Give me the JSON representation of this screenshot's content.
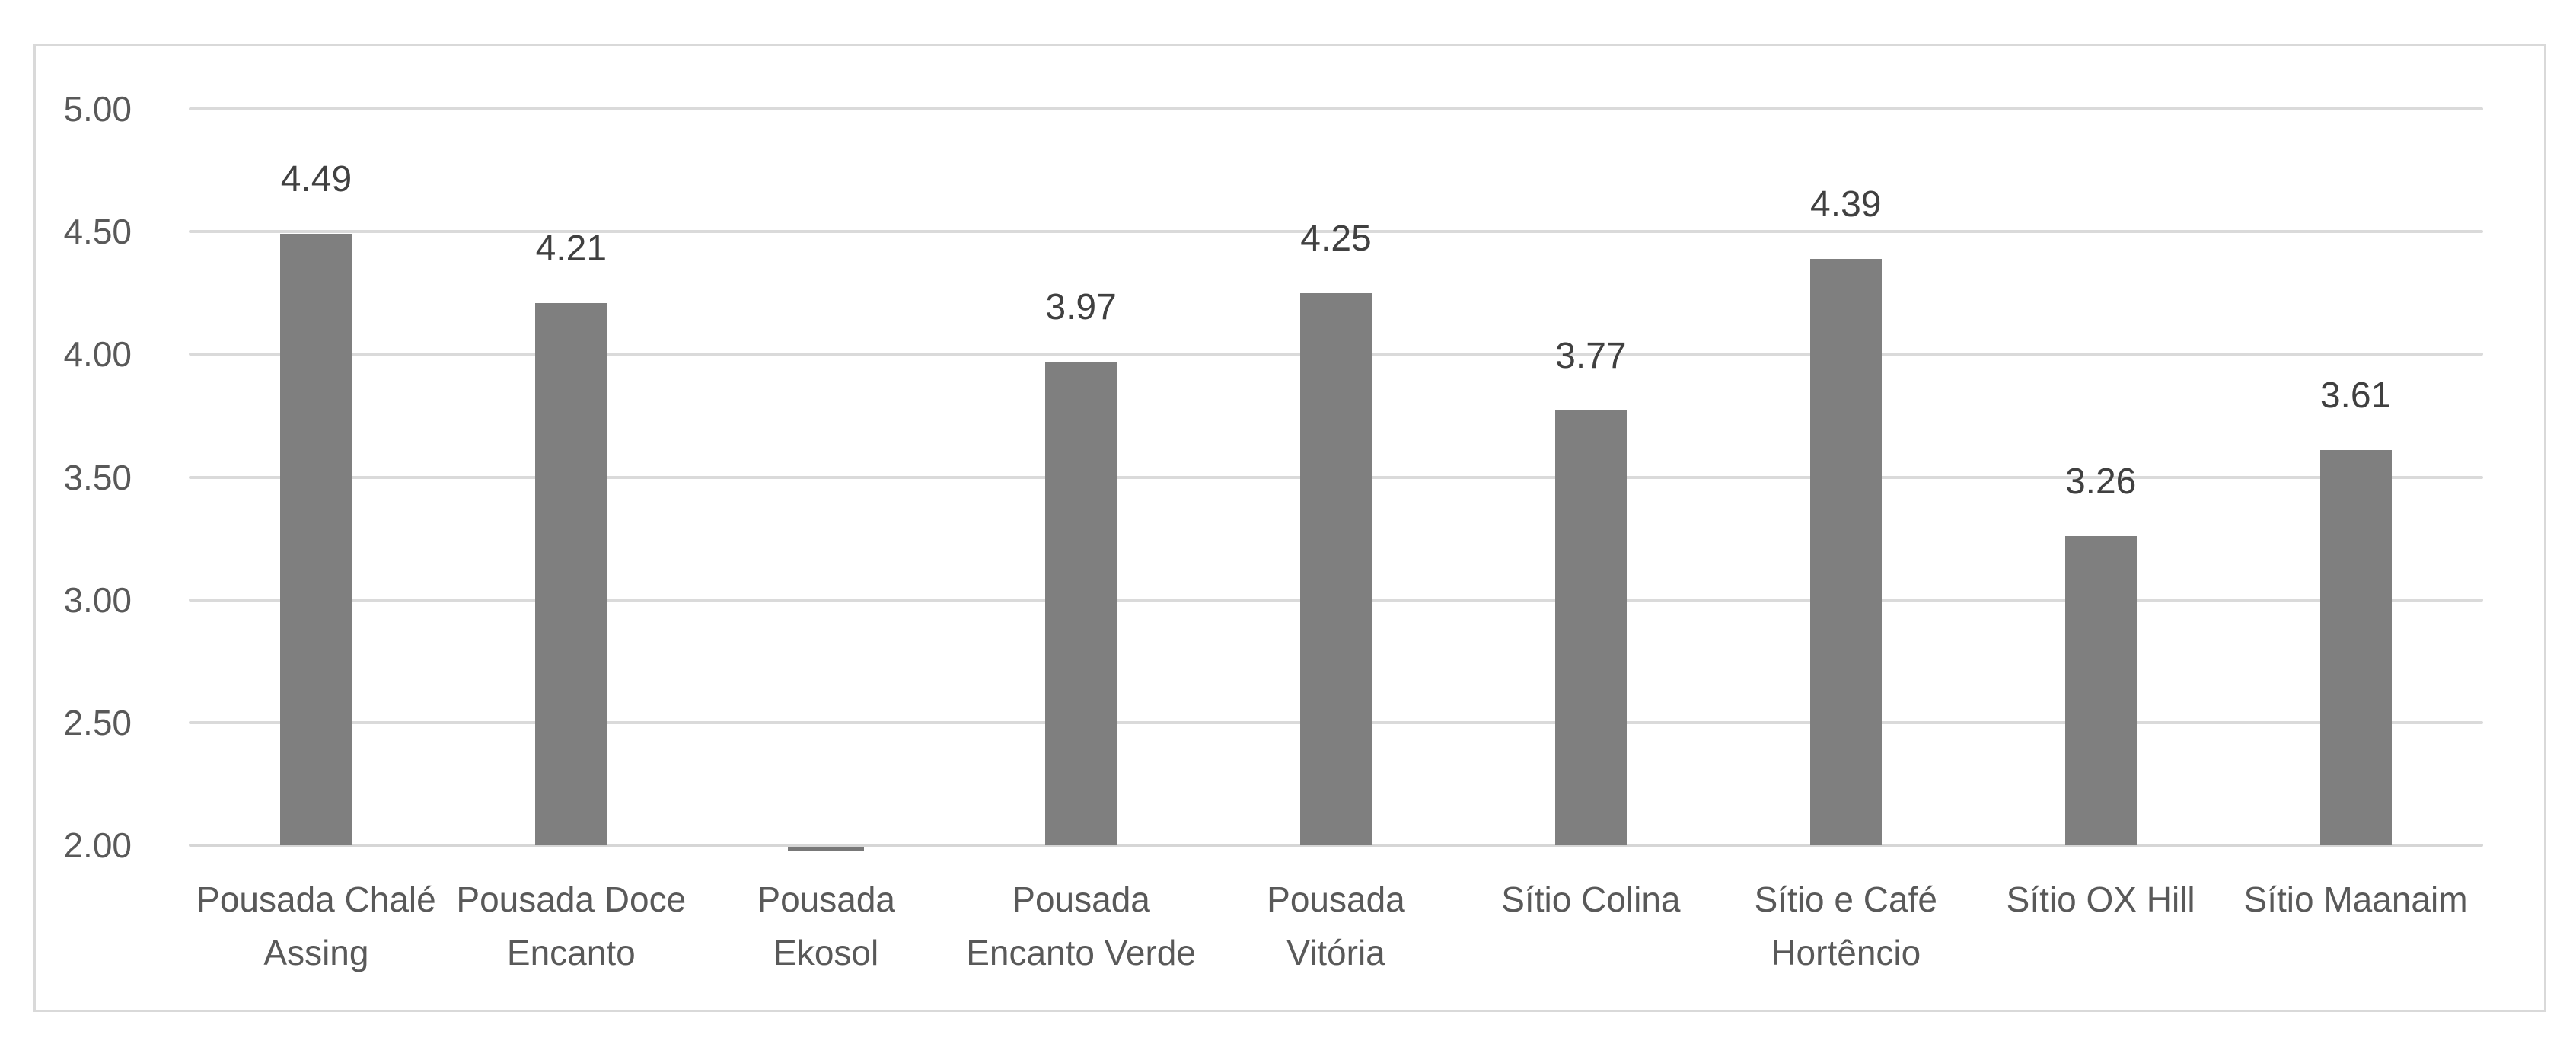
{
  "chart_data": {
    "type": "bar",
    "title": "",
    "xlabel": "",
    "ylabel": "",
    "legend": "none",
    "grid": "horizontal",
    "categories": [
      "Pousada Chalé Assing",
      "Pousada Doce Encanto",
      "Pousada Ekosol",
      "Pousada Encanto Verde",
      "Pousada Vitória",
      "Sítio Colina",
      "Sítio e Café Hortêncio",
      "Sítio OX Hill",
      "Sítio Maanaim"
    ],
    "category_label_lines": [
      [
        "Pousada Chalé",
        "Assing"
      ],
      [
        "Pousada Doce",
        "Encanto"
      ],
      [
        "Pousada",
        "Ekosol"
      ],
      [
        "Pousada",
        "Encanto Verde"
      ],
      [
        "Pousada",
        "Vitória"
      ],
      [
        "Sítio Colina"
      ],
      [
        "Sítio e Café",
        "Hortêncio"
      ],
      [
        "Sítio OX Hill"
      ],
      [
        "Sítio Maanaim"
      ]
    ],
    "values": [
      4.49,
      4.21,
      2.0,
      3.97,
      4.25,
      3.77,
      4.39,
      3.26,
      3.61
    ],
    "data_labels": [
      "4.49",
      "4.21",
      null,
      "3.97",
      "4.25",
      "3.77",
      "4.39",
      "3.26",
      "3.61"
    ],
    "y_ticks": [
      "5.00",
      "4.50",
      "4.00",
      "3.50",
      "3.00",
      "2.50",
      "2.00"
    ],
    "y_tick_values": [
      5.0,
      4.5,
      4.0,
      3.5,
      3.0,
      2.5,
      2.0
    ],
    "ylim": [
      2.0,
      5.0
    ],
    "colors": {
      "bar": "#7f7f7f",
      "bar_stub": "#787878",
      "gridline": "#dadada",
      "axis_line": "#d6d6d6",
      "axis_label": "#595959",
      "data_label": "#404040",
      "category_label": "#595959",
      "frame_border": "#d9d9d9",
      "background": "#ffffff"
    }
  }
}
